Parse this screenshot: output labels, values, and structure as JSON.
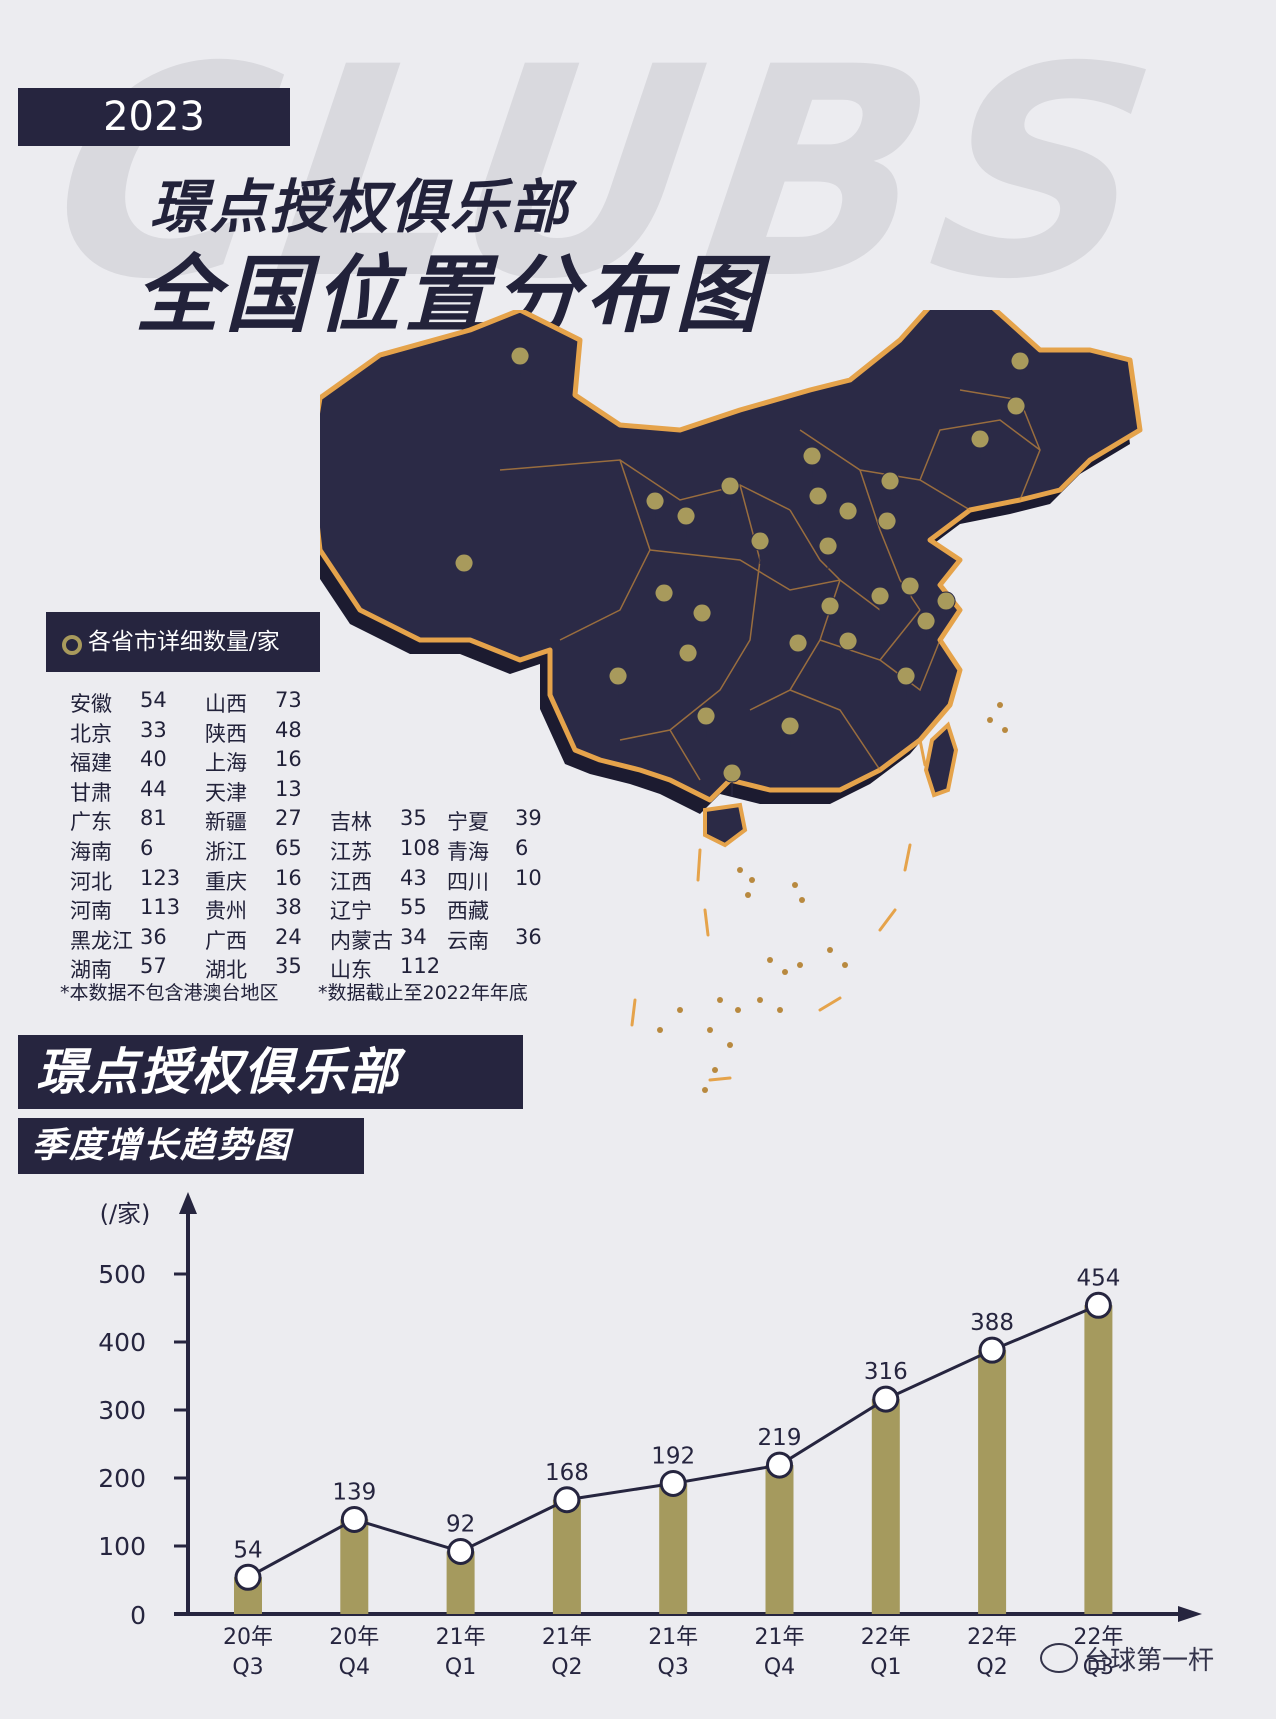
{
  "header": {
    "bg_word": "CLUBS",
    "year": "2023",
    "title_line1": "璟点授权俱乐部",
    "title_line2": "全国位置分布图"
  },
  "legend": {
    "title": "各省市详细数量/家",
    "provinces": [
      {
        "name": "安徽",
        "count": "54"
      },
      {
        "name": "北京",
        "count": "33"
      },
      {
        "name": "福建",
        "count": "40"
      },
      {
        "name": "甘肃",
        "count": "44"
      },
      {
        "name": "广东",
        "count": "81"
      },
      {
        "name": "海南",
        "count": "6"
      },
      {
        "name": "河北",
        "count": "123"
      },
      {
        "name": "河南",
        "count": "113"
      },
      {
        "name": "黑龙江",
        "count": "36"
      },
      {
        "name": "湖南",
        "count": "57"
      },
      {
        "name": "山西",
        "count": "73"
      },
      {
        "name": "陕西",
        "count": "48"
      },
      {
        "name": "上海",
        "count": "16"
      },
      {
        "name": "天津",
        "count": "13"
      },
      {
        "name": "新疆",
        "count": "27"
      },
      {
        "name": "浙江",
        "count": "65"
      },
      {
        "name": "重庆",
        "count": "16"
      },
      {
        "name": "贵州",
        "count": "38"
      },
      {
        "name": "广西",
        "count": "24"
      },
      {
        "name": "湖北",
        "count": "35"
      },
      {
        "name": "吉林",
        "count": "35"
      },
      {
        "name": "江苏",
        "count": "108"
      },
      {
        "name": "江西",
        "count": "43"
      },
      {
        "name": "辽宁",
        "count": "55"
      },
      {
        "name": "内蒙古",
        "count": "34"
      },
      {
        "name": "山东",
        "count": "112"
      },
      {
        "name": "宁夏",
        "count": "39"
      },
      {
        "name": "青海",
        "count": "6"
      },
      {
        "name": "四川",
        "count": "10"
      },
      {
        "name": "西藏",
        "count": ""
      },
      {
        "name": "云南",
        "count": "36"
      }
    ],
    "note_left": "*本数据不包含港澳台地区",
    "note_right": "*数据截止至2022年年底"
  },
  "trend": {
    "title": "璟点授权俱乐部",
    "subtitle": "季度增长趋势图"
  },
  "chart_data": {
    "type": "bar",
    "overlay": "line",
    "ylabel": "(/家)",
    "ylim": [
      0,
      500
    ],
    "yticks": [
      "0",
      "100",
      "200",
      "300",
      "400",
      "500"
    ],
    "categories": [
      {
        "year": "20年",
        "q": "Q3"
      },
      {
        "year": "20年",
        "q": "Q4"
      },
      {
        "year": "21年",
        "q": "Q1"
      },
      {
        "year": "21年",
        "q": "Q2"
      },
      {
        "year": "21年",
        "q": "Q3"
      },
      {
        "year": "21年",
        "q": "Q4"
      },
      {
        "year": "22年",
        "q": "Q1"
      },
      {
        "year": "22年",
        "q": "Q2"
      },
      {
        "year": "22年",
        "q": "Q3"
      }
    ],
    "values": [
      54,
      139,
      92,
      168,
      192,
      219,
      316,
      388,
      454
    ],
    "bar_color": "#a59a5e",
    "line_color": "#26253f"
  },
  "watermark": "台球第一杆",
  "colors": {
    "dark": "#26253f",
    "map_fill": "#2b2a46",
    "map_border": "#e5a34b",
    "pin": "#a89a5c"
  }
}
